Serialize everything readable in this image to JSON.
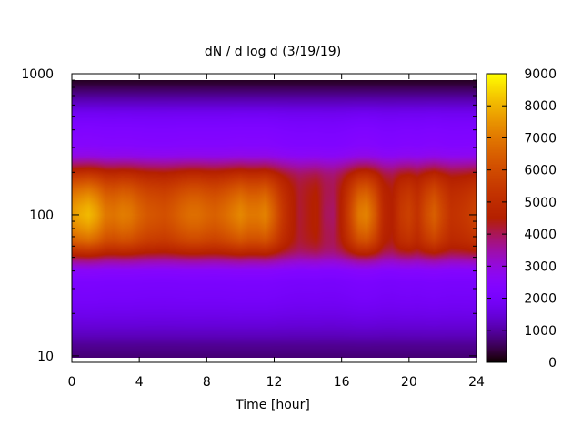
{
  "chart_data": {
    "type": "heatmap",
    "title": "dN / d log d (3/19/19)",
    "xlabel": "Time [hour]",
    "ylabel": "",
    "xlim": [
      0,
      24
    ],
    "ylim": [
      9,
      1000
    ],
    "y_scale": "log",
    "x_ticks": [
      {
        "value": 0,
        "label": "0"
      },
      {
        "value": 4,
        "label": "4"
      },
      {
        "value": 8,
        "label": "8"
      },
      {
        "value": 12,
        "label": "12"
      },
      {
        "value": 16,
        "label": "16"
      },
      {
        "value": 20,
        "label": "20"
      },
      {
        "value": 24,
        "label": "24"
      }
    ],
    "y_ticks": [
      {
        "value": 10,
        "label": "10"
      },
      {
        "value": 100,
        "label": "100"
      },
      {
        "value": 1000,
        "label": "1000"
      }
    ],
    "colorbar": {
      "range": [
        0,
        9000
      ],
      "ticks": [
        {
          "value": 0,
          "label": "0"
        },
        {
          "value": 1000,
          "label": "1000"
        },
        {
          "value": 2000,
          "label": "2000"
        },
        {
          "value": 3000,
          "label": "3000"
        },
        {
          "value": 4000,
          "label": "4000"
        },
        {
          "value": 5000,
          "label": "5000"
        },
        {
          "value": 6000,
          "label": "6000"
        },
        {
          "value": 7000,
          "label": "7000"
        },
        {
          "value": 8000,
          "label": "8000"
        },
        {
          "value": 9000,
          "label": "9000"
        }
      ],
      "palette": "gnuplot"
    },
    "x": [
      0,
      0.5,
      1,
      1.5,
      2,
      2.5,
      3,
      3.5,
      4,
      4.5,
      5,
      5.5,
      6,
      6.5,
      7,
      7.5,
      8,
      8.5,
      9,
      9.5,
      10,
      10.5,
      11,
      11.5,
      12,
      12.5,
      13,
      13.5,
      14,
      14.5,
      15,
      15.5,
      16,
      16.5,
      17,
      17.5,
      18,
      18.5,
      19,
      19.5,
      20,
      20.5,
      21,
      21.5,
      22,
      22.5,
      23,
      23.5,
      24
    ],
    "y": [
      9,
      10,
      12,
      14,
      17,
      20,
      24,
      28,
      33,
      40,
      47,
      55,
      65,
      77,
      90,
      100,
      115,
      135,
      160,
      190,
      225,
      265,
      315,
      370,
      440,
      520,
      610,
      720,
      850,
      900
    ],
    "z_profile_by_diameter": [
      600,
      700,
      900,
      1200,
      1500,
      1700,
      1900,
      2000,
      2100,
      2500,
      3500,
      4800,
      5800,
      6300,
      6600,
      6700,
      6600,
      6300,
      5800,
      5000,
      3800,
      2800,
      2400,
      2300,
      2100,
      1800,
      1300,
      800,
      300,
      200
    ],
    "z_peak_by_time": [
      7600,
      7900,
      8100,
      7700,
      7000,
      6900,
      7100,
      7000,
      6600,
      6300,
      6200,
      6100,
      6300,
      6600,
      6800,
      6800,
      6600,
      6500,
      6700,
      7000,
      7300,
      7000,
      7000,
      7200,
      6400,
      5400,
      4700,
      4200,
      4400,
      4600,
      4000,
      3900,
      4600,
      5800,
      7000,
      7200,
      6300,
      4800,
      4500,
      5400,
      5700,
      5200,
      6000,
      6500,
      5800,
      5200,
      5300,
      5500,
      5800
    ]
  }
}
